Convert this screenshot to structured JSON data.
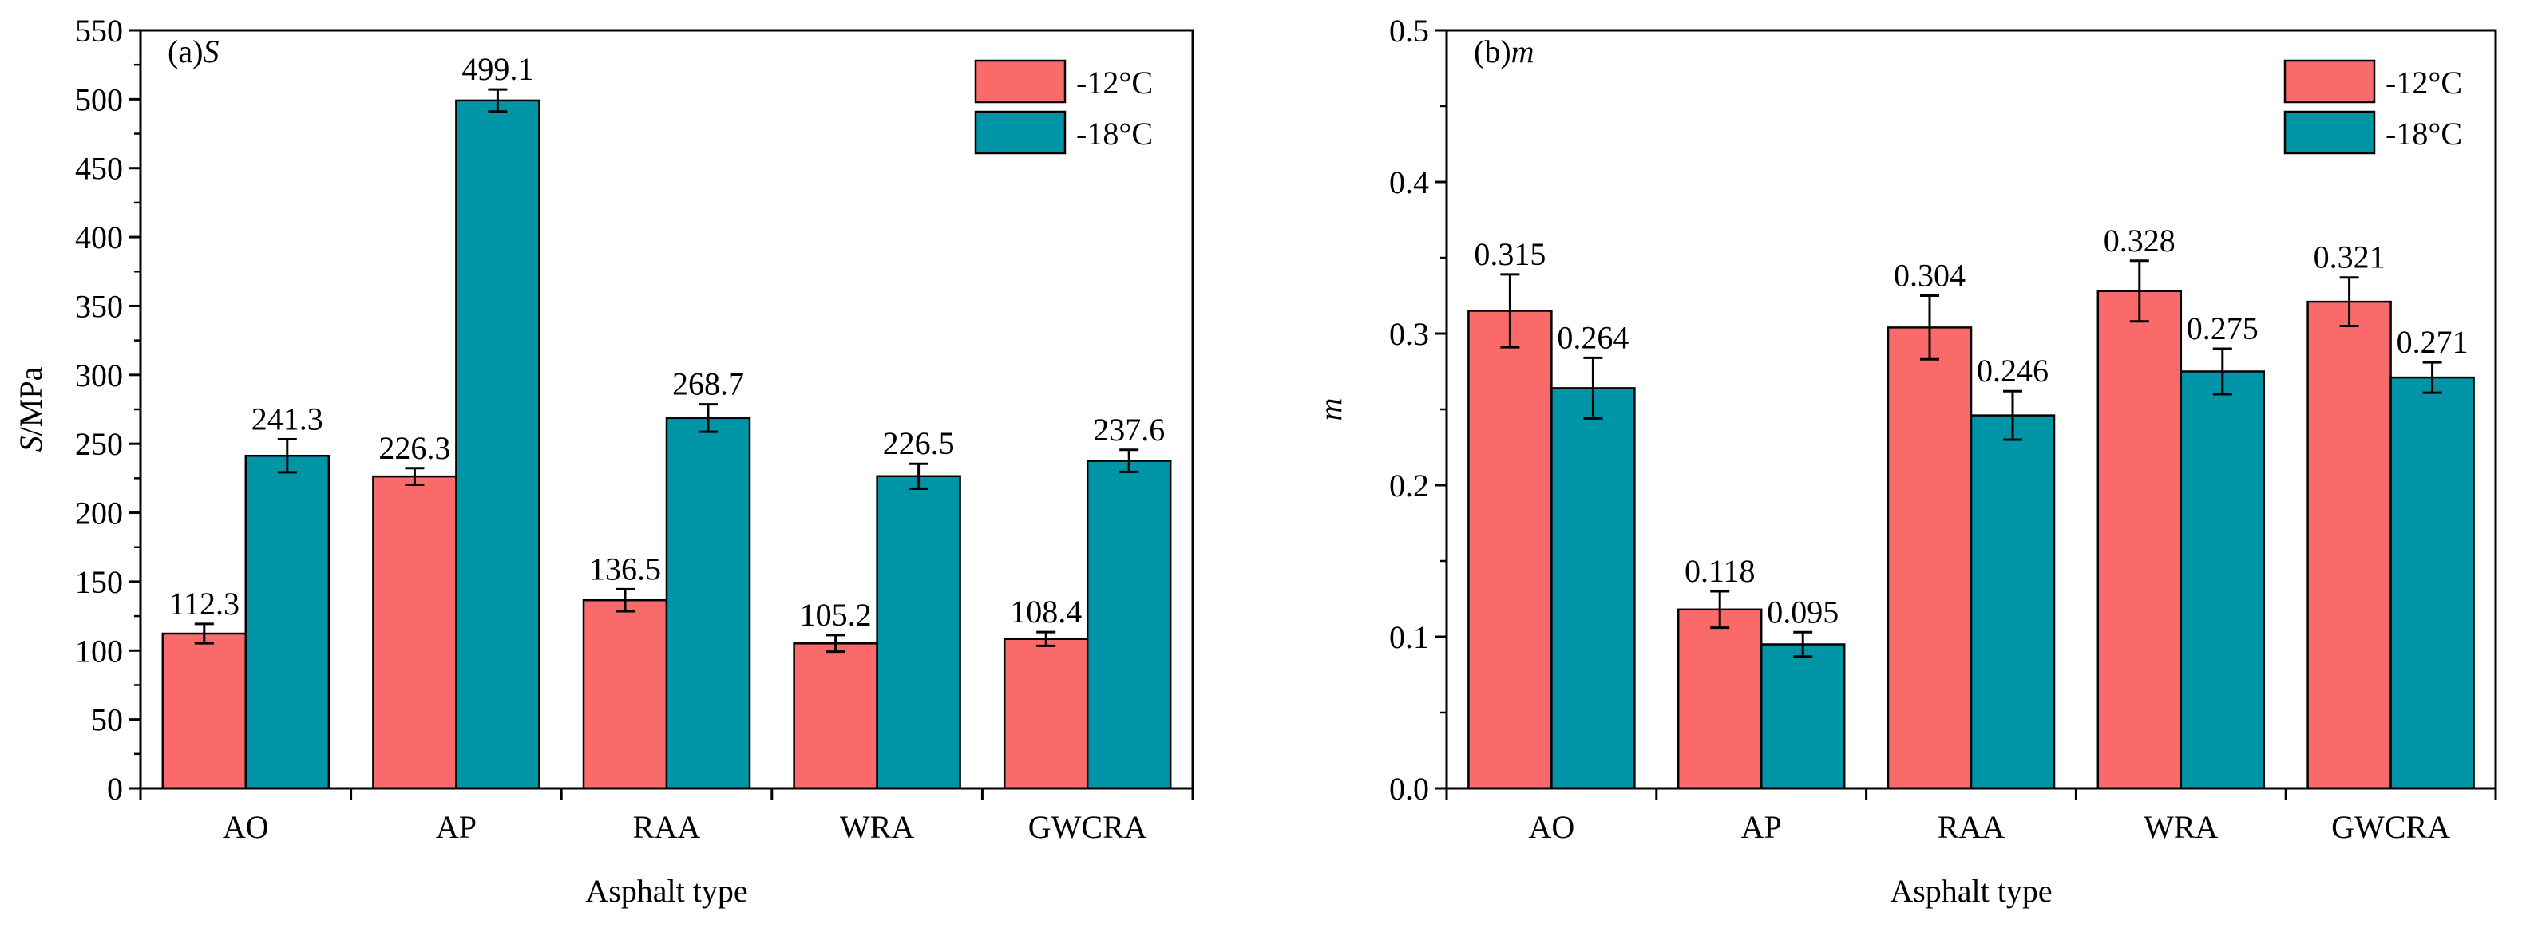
{
  "colors": {
    "series_12": "#fb6a6a",
    "series_18": "#0095a6",
    "axis": "#000000",
    "background": "#ffffff"
  },
  "chart_data": [
    {
      "type": "bar",
      "panel_prefix": "(a)",
      "panel_symbol": "S",
      "xlabel": "Asphalt type",
      "ylabel_symbol": "S",
      "ylabel_unit": "/MPa",
      "ylim": [
        0,
        550
      ],
      "yticks": [
        0,
        50,
        100,
        150,
        200,
        250,
        300,
        350,
        400,
        450,
        500,
        550
      ],
      "categories": [
        "AO",
        "AP",
        "RAA",
        "WRA",
        "GWCRA"
      ],
      "series": [
        {
          "name": "-12°C",
          "values": [
            112.3,
            226.3,
            136.5,
            105.2,
            108.4
          ],
          "errors": [
            7,
            6,
            8,
            6,
            5
          ],
          "labels": [
            "112.3",
            "226.3",
            "136.5",
            "105.2",
            "108.4"
          ]
        },
        {
          "name": "-18°C",
          "values": [
            241.3,
            499.1,
            268.7,
            226.5,
            237.6
          ],
          "errors": [
            12,
            8,
            10,
            9,
            8
          ],
          "labels": [
            "241.3",
            "499.1",
            "268.7",
            "226.5",
            "237.6"
          ]
        }
      ],
      "legend_position": "top-right"
    },
    {
      "type": "bar",
      "panel_prefix": "(b)",
      "panel_symbol": "m",
      "xlabel": "Asphalt type",
      "ylabel_symbol": "m",
      "ylabel_unit": "",
      "ylim": [
        0,
        0.5
      ],
      "yticks": [
        0.0,
        0.1,
        0.2,
        0.3,
        0.4,
        0.5
      ],
      "ytick_decimals": 1,
      "categories": [
        "AO",
        "AP",
        "RAA",
        "WRA",
        "GWCRA"
      ],
      "series": [
        {
          "name": "-12°C",
          "values": [
            0.315,
            0.118,
            0.304,
            0.328,
            0.321
          ],
          "errors": [
            0.024,
            0.012,
            0.021,
            0.02,
            0.016
          ],
          "labels": [
            "0.315",
            "0.118",
            "0.304",
            "0.328",
            "0.321"
          ]
        },
        {
          "name": "-18°C",
          "values": [
            0.264,
            0.095,
            0.246,
            0.275,
            0.271
          ],
          "errors": [
            0.02,
            0.008,
            0.016,
            0.015,
            0.01
          ],
          "labels": [
            "0.264",
            "0.095",
            "0.246",
            "0.275",
            "0.271"
          ]
        }
      ],
      "legend_position": "top-right"
    }
  ]
}
